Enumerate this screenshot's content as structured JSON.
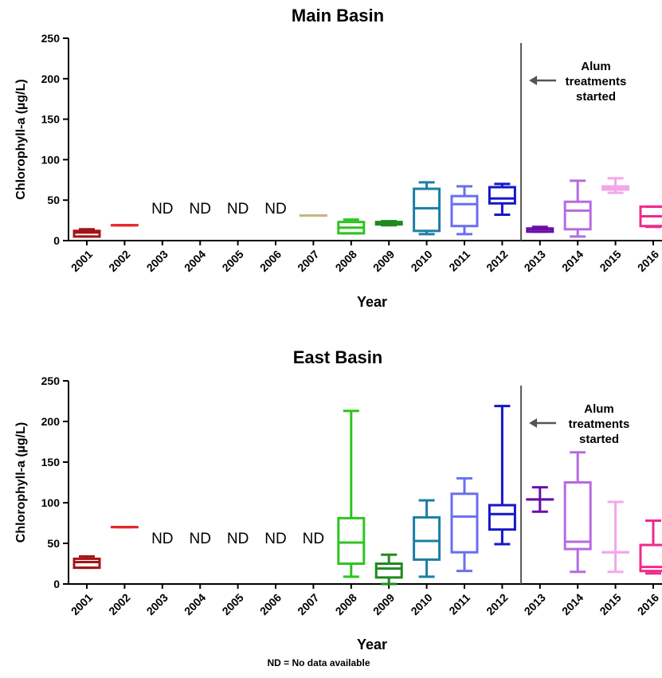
{
  "footnote": "ND = No data available",
  "chart_data": [
    {
      "type": "box",
      "title": "Main Basin",
      "xlabel": "Year",
      "ylabel": "Chlorophyll-a (µg/L)",
      "ylim": [
        0,
        250
      ],
      "yticks": [
        0,
        50,
        100,
        150,
        200,
        250
      ],
      "grid": false,
      "categories": [
        "2001",
        "2002",
        "2003",
        "2004",
        "2005",
        "2006",
        "2007",
        "2008",
        "2009",
        "2010",
        "2011",
        "2012",
        "2013",
        "2014",
        "2015",
        "2016"
      ],
      "nd_label": "ND",
      "divider_after": "2012",
      "annotation": {
        "lines": [
          "Alum",
          "treatments",
          "started"
        ],
        "arrow": "left"
      },
      "boxes": [
        {
          "year": "2001",
          "color": "#a31515",
          "min": 5,
          "q1": 5,
          "median": 10,
          "q3": 12,
          "max": 14
        },
        {
          "year": "2002",
          "color": "#e8262b",
          "min": 19,
          "q1": 19,
          "median": 19,
          "q3": 19,
          "max": 19
        },
        {
          "year": "2003",
          "nd": true
        },
        {
          "year": "2004",
          "nd": true
        },
        {
          "year": "2005",
          "nd": true
        },
        {
          "year": "2006",
          "nd": true
        },
        {
          "year": "2007",
          "color": "#c8b383",
          "min": 31,
          "q1": 31,
          "median": 31,
          "q3": 31,
          "max": 31
        },
        {
          "year": "2008",
          "color": "#2ec41e",
          "min": 9,
          "q1": 9,
          "median": 16,
          "q3": 23,
          "max": 26
        },
        {
          "year": "2009",
          "color": "#1e8a1e",
          "min": 19,
          "q1": 20,
          "median": 22,
          "q3": 23,
          "max": 24
        },
        {
          "year": "2010",
          "color": "#1a7fa6",
          "min": 8,
          "q1": 12,
          "median": 40,
          "q3": 64,
          "max": 72
        },
        {
          "year": "2011",
          "color": "#6b6ef0",
          "min": 8,
          "q1": 18,
          "median": 45,
          "q3": 55,
          "max": 67
        },
        {
          "year": "2012",
          "color": "#1616c8",
          "min": 32,
          "q1": 46,
          "median": 52,
          "q3": 66,
          "max": 70
        },
        {
          "year": "2013",
          "color": "#6a0ea8",
          "min": 11,
          "q1": 11,
          "median": 14,
          "q3": 15,
          "max": 17
        },
        {
          "year": "2014",
          "color": "#b56be0",
          "min": 5,
          "q1": 14,
          "median": 37,
          "q3": 48,
          "max": 74
        },
        {
          "year": "2015",
          "color": "#f3a7ea",
          "min": 59,
          "q1": 63,
          "median": 66,
          "q3": 67,
          "max": 77
        },
        {
          "year": "2016",
          "color": "#ee2a8c",
          "min": 17,
          "q1": 18,
          "median": 30,
          "q3": 42,
          "max": 42
        }
      ]
    },
    {
      "type": "box",
      "title": "East Basin",
      "xlabel": "Year",
      "ylabel": "Chlorophyll-a (µg/L)",
      "ylim": [
        0,
        250
      ],
      "yticks": [
        0,
        50,
        100,
        150,
        200,
        250
      ],
      "grid": false,
      "categories": [
        "2001",
        "2002",
        "2003",
        "2004",
        "2005",
        "2006",
        "2007",
        "2008",
        "2009",
        "2010",
        "2011",
        "2012",
        "2013",
        "2014",
        "2015",
        "2016"
      ],
      "nd_label": "ND",
      "divider_after": "2012",
      "annotation": {
        "lines": [
          "Alum",
          "treatments",
          "started"
        ],
        "arrow": "left"
      },
      "boxes": [
        {
          "year": "2001",
          "color": "#a31515",
          "min": 20,
          "q1": 20,
          "median": 27,
          "q3": 31,
          "max": 34
        },
        {
          "year": "2002",
          "color": "#e8262b",
          "min": 70,
          "q1": 70,
          "median": 70,
          "q3": 70,
          "max": 70
        },
        {
          "year": "2003",
          "nd": true
        },
        {
          "year": "2004",
          "nd": true
        },
        {
          "year": "2005",
          "nd": true
        },
        {
          "year": "2006",
          "nd": true
        },
        {
          "year": "2007",
          "nd": true
        },
        {
          "year": "2008",
          "color": "#2ec41e",
          "min": 9,
          "q1": 25,
          "median": 51,
          "q3": 81,
          "max": 213
        },
        {
          "year": "2009",
          "color": "#1e8a1e",
          "min": 0,
          "q1": 8,
          "median": 19,
          "q3": 25,
          "max": 36
        },
        {
          "year": "2010",
          "color": "#1a7fa6",
          "min": 9,
          "q1": 30,
          "median": 53,
          "q3": 82,
          "max": 103
        },
        {
          "year": "2011",
          "color": "#6b6ef0",
          "min": 16,
          "q1": 39,
          "median": 83,
          "q3": 111,
          "max": 130
        },
        {
          "year": "2012",
          "color": "#1616c8",
          "min": 49,
          "q1": 67,
          "median": 86,
          "q3": 97,
          "max": 219
        },
        {
          "year": "2013",
          "color": "#6a0ea8",
          "min": 89,
          "q1": 104,
          "median": 104,
          "q3": 104,
          "max": 119
        },
        {
          "year": "2014",
          "color": "#b56be0",
          "min": 15,
          "q1": 43,
          "median": 52,
          "q3": 125,
          "max": 162
        },
        {
          "year": "2015",
          "color": "#f3a7ea",
          "min": 15,
          "q1": 39,
          "median": 39,
          "q3": 39,
          "max": 101
        },
        {
          "year": "2016",
          "color": "#ee2a8c",
          "min": 13,
          "q1": 16,
          "median": 21,
          "q3": 48,
          "max": 78
        }
      ]
    }
  ]
}
